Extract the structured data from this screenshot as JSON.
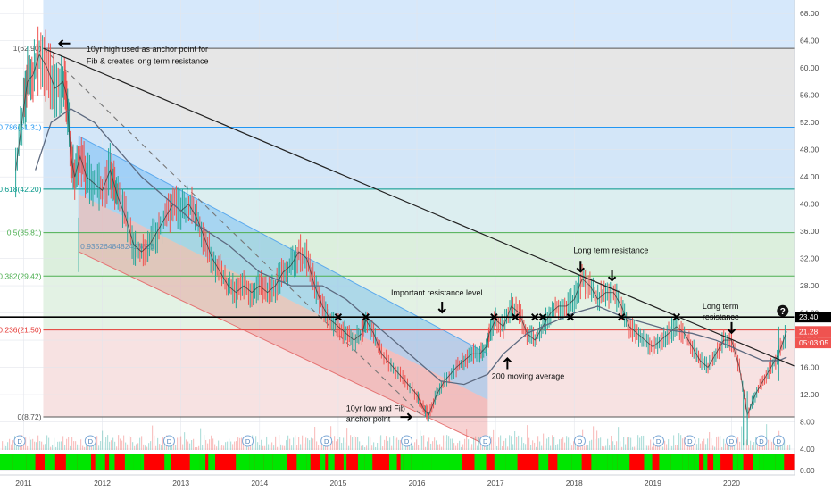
{
  "chart_data": {
    "type": "line",
    "series": [
      {
        "values": [
          [
            2010.9,
            45
          ],
          [
            2011.0,
            54
          ],
          [
            2011.05,
            58
          ],
          [
            2011.12,
            59
          ],
          [
            2011.2,
            62
          ],
          [
            2011.3,
            60
          ],
          [
            2011.4,
            57
          ],
          [
            2011.5,
            58
          ],
          [
            2011.55,
            56
          ],
          [
            2011.6,
            47
          ],
          [
            2011.65,
            44
          ],
          [
            2011.72,
            47
          ],
          [
            2011.8,
            44
          ],
          [
            2011.9,
            43
          ],
          [
            2012.0,
            42
          ],
          [
            2012.1,
            45
          ],
          [
            2012.15,
            43
          ],
          [
            2012.2,
            41
          ],
          [
            2012.3,
            38
          ],
          [
            2012.4,
            34
          ],
          [
            2012.5,
            33
          ],
          [
            2012.6,
            34
          ],
          [
            2012.7,
            36
          ],
          [
            2012.8,
            38
          ],
          [
            2012.9,
            40
          ],
          [
            2013.0,
            39
          ],
          [
            2013.1,
            40
          ],
          [
            2013.2,
            38
          ],
          [
            2013.3,
            35
          ],
          [
            2013.4,
            32
          ],
          [
            2013.5,
            30
          ],
          [
            2013.6,
            28
          ],
          [
            2013.7,
            27
          ],
          [
            2013.8,
            28
          ],
          [
            2013.9,
            27
          ],
          [
            2014.0,
            28
          ],
          [
            2014.1,
            27
          ],
          [
            2014.2,
            28
          ],
          [
            2014.3,
            30
          ],
          [
            2014.4,
            31
          ],
          [
            2014.5,
            33
          ],
          [
            2014.6,
            32
          ],
          [
            2014.7,
            28
          ],
          [
            2014.8,
            25
          ],
          [
            2014.9,
            23
          ],
          [
            2015.0,
            22
          ],
          [
            2015.1,
            21
          ],
          [
            2015.2,
            20
          ],
          [
            2015.3,
            21
          ],
          [
            2015.35,
            23
          ],
          [
            2015.45,
            21
          ],
          [
            2015.55,
            18
          ],
          [
            2015.7,
            16
          ],
          [
            2015.85,
            14
          ],
          [
            2016.0,
            12
          ],
          [
            2016.08,
            10
          ],
          [
            2016.15,
            9
          ],
          [
            2016.25,
            12
          ],
          [
            2016.35,
            14
          ],
          [
            2016.5,
            16
          ],
          [
            2016.6,
            17
          ],
          [
            2016.7,
            18
          ],
          [
            2016.8,
            18
          ],
          [
            2016.88,
            19
          ],
          [
            2016.92,
            21
          ],
          [
            2017.0,
            23
          ],
          [
            2017.1,
            22
          ],
          [
            2017.2,
            25
          ],
          [
            2017.3,
            24
          ],
          [
            2017.4,
            21
          ],
          [
            2017.5,
            20
          ],
          [
            2017.6,
            22
          ],
          [
            2017.7,
            24
          ],
          [
            2017.8,
            25
          ],
          [
            2017.9,
            25
          ],
          [
            2018.0,
            26
          ],
          [
            2018.1,
            29
          ],
          [
            2018.2,
            28
          ],
          [
            2018.3,
            26
          ],
          [
            2018.4,
            27
          ],
          [
            2018.5,
            27
          ],
          [
            2018.6,
            25
          ],
          [
            2018.7,
            22
          ],
          [
            2018.8,
            21
          ],
          [
            2018.9,
            20
          ],
          [
            2019.0,
            19
          ],
          [
            2019.1,
            20
          ],
          [
            2019.2,
            21
          ],
          [
            2019.3,
            22
          ],
          [
            2019.4,
            21
          ],
          [
            2019.5,
            19
          ],
          [
            2019.6,
            17
          ],
          [
            2019.7,
            16
          ],
          [
            2019.8,
            18
          ],
          [
            2019.9,
            20
          ],
          [
            2020.0,
            20
          ],
          [
            2020.1,
            16
          ],
          [
            2020.2,
            9
          ],
          [
            2020.3,
            12
          ],
          [
            2020.4,
            14
          ],
          [
            2020.5,
            16
          ],
          [
            2020.6,
            18
          ],
          [
            2020.7,
            21.28
          ]
        ]
      },
      {
        "values": [
          [
            2011.15,
            45
          ],
          [
            2011.35,
            52
          ],
          [
            2011.6,
            54
          ],
          [
            2011.9,
            52
          ],
          [
            2012.2,
            48
          ],
          [
            2012.5,
            44
          ],
          [
            2012.9,
            40
          ],
          [
            2013.2,
            37
          ],
          [
            2013.6,
            34
          ],
          [
            2014.0,
            30
          ],
          [
            2014.4,
            28
          ],
          [
            2014.8,
            28
          ],
          [
            2015.1,
            26
          ],
          [
            2015.4,
            23
          ],
          [
            2015.7,
            20
          ],
          [
            2016.0,
            17
          ],
          [
            2016.3,
            14
          ],
          [
            2016.6,
            13.5
          ],
          [
            2016.9,
            15
          ],
          [
            2017.1,
            18
          ],
          [
            2017.4,
            21
          ],
          [
            2017.7,
            22.5
          ],
          [
            2018.0,
            24
          ],
          [
            2018.3,
            25
          ],
          [
            2018.6,
            23.5
          ],
          [
            2018.9,
            22.5
          ],
          [
            2019.2,
            21.5
          ],
          [
            2019.5,
            21
          ],
          [
            2019.8,
            20
          ],
          [
            2020.1,
            18.5
          ],
          [
            2020.4,
            17
          ],
          [
            2020.6,
            17
          ],
          [
            2020.7,
            17.5
          ]
        ]
      }
    ],
    "x_ticks": [
      "2011",
      "2012",
      "2013",
      "2014",
      "2015",
      "2016",
      "2017",
      "2018",
      "2019",
      "2020"
    ],
    "y_ticks": [
      "68.00",
      "64.00",
      "60.00",
      "56.00",
      "52.00",
      "48.00",
      "44.00",
      "40.00",
      "36.00",
      "32.00",
      "28.00",
      "24.00",
      "20.00",
      "16.00",
      "12.00",
      "8.00",
      "4.00",
      "0.00"
    ],
    "indicator_tick": "0.00",
    "xlim": [
      2010.7,
      2020.8
    ],
    "ylim": [
      4,
      70
    ],
    "price_labels": [
      {
        "text": "23.40",
        "value": 23.4,
        "color": "#000000"
      },
      {
        "text": "21.28",
        "value": 21.28,
        "color": "#ef5350"
      },
      {
        "text": "05:03:05",
        "value": 19.6,
        "color": "#ef5350"
      }
    ],
    "fib_levels": [
      {
        "label": "1(62.90)",
        "value": 62.9,
        "color": "#555555",
        "zone": "#e6e6e6"
      },
      {
        "label": "0.786(51.31)",
        "value": 51.31,
        "color": "#2196f3",
        "zone": "#d3e6f8"
      },
      {
        "label": "0.618(42.20)",
        "value": 42.2,
        "color": "#009688",
        "zone": "#dceef0"
      },
      {
        "label": "0.5(35.81)",
        "value": 35.81,
        "color": "#4caf50",
        "zone": "#dcefdd"
      },
      {
        "label": "0.382(29.42)",
        "value": 29.42,
        "color": "#4caf50",
        "zone": "#e3f2e4"
      },
      {
        "label": "0.236(21.50)",
        "value": 21.5,
        "color": "#e53935",
        "zone": "#f7e2e2"
      },
      {
        "label": "0(8.72)",
        "value": 8.72,
        "color": "#555555",
        "zone": "#fad9d9"
      }
    ],
    "fib_top_zone_color": "#d6e8fb",
    "channel_label": "0.9352648482453826",
    "resistance_line": {
      "value": 23.4
    },
    "trend_line": {
      "from": [
        2011.25,
        62.9
      ],
      "to": [
        2020.8,
        16.2
      ]
    },
    "channel": {
      "upper": [
        [
          2011.7,
          50
        ],
        [
          2016.9,
          18
        ]
      ],
      "lower": [
        [
          2011.7,
          33
        ],
        [
          2016.9,
          4.5
        ]
      ],
      "mid": [
        [
          2011.7,
          41.5
        ],
        [
          2016.9,
          11.25
        ]
      ],
      "dashed": [
        [
          2011.25,
          62.9
        ],
        [
          2016.08,
          8.72
        ]
      ]
    },
    "annotations": [
      {
        "text": "10yr high used as anchor point for",
        "x": 2011.8,
        "y": 62.4
      },
      {
        "text": "Fib & creates long term resistance",
        "x": 2011.8,
        "y": 60.6
      },
      {
        "text": "Important resistance level",
        "x": 2015.67,
        "y": 26.6
      },
      {
        "text": "Long term resistance",
        "x": 2017.99,
        "y": 32.8
      },
      {
        "text": "Long term",
        "x": 2019.63,
        "y": 24.6
      },
      {
        "text": "resistance",
        "x": 2019.63,
        "y": 23.0
      },
      {
        "text": "200 moving average",
        "x": 2016.95,
        "y": 14.3
      },
      {
        "text": "10yr low and Fib",
        "x": 2015.1,
        "y": 9.6
      },
      {
        "text": "anchor point",
        "x": 2015.1,
        "y": 8.0
      }
    ],
    "x_marks": [
      [
        2015.0,
        23.4
      ],
      [
        2015.35,
        23.4
      ],
      [
        2016.98,
        23.4
      ],
      [
        2017.25,
        23.4
      ],
      [
        2017.5,
        23.4
      ],
      [
        2017.6,
        23.4
      ],
      [
        2017.95,
        23.4
      ],
      [
        2018.6,
        23.4
      ],
      [
        2019.3,
        23.4
      ]
    ],
    "arrows": [
      {
        "dir": "left",
        "x": 2011.5,
        "y": 63.6
      },
      {
        "dir": "down",
        "x": 2016.32,
        "y": 24.6
      },
      {
        "dir": "down",
        "x": 2018.08,
        "y": 30.6
      },
      {
        "dir": "down",
        "x": 2018.48,
        "y": 29.3
      },
      {
        "dir": "down",
        "x": 2020.0,
        "y": 21.6
      },
      {
        "dir": "up",
        "x": 2017.15,
        "y": 16.8
      },
      {
        "dir": "right",
        "x": 2015.88,
        "y": 8.7
      }
    ],
    "question_mark": {
      "text": "?",
      "x": 2020.65,
      "y": 24.3
    },
    "dividend_markers": {
      "text": "D",
      "x": [
        2010.95,
        2011.85,
        2012.85,
        2013.85,
        2014.85,
        2015.87,
        2016.87,
        2018.07,
        2019.07,
        2019.47,
        2020.0,
        2020.38,
        2020.6
      ]
    },
    "grid": true,
    "colors": {
      "up": "#26a69a",
      "down": "#ef5350",
      "price_line": "#333333",
      "ma_line": "#5d6a80",
      "channel_upper_fill": "#2196f3",
      "channel_lower_fill": "#e57373",
      "indicator_up": "#00e600",
      "indicator_down": "#ff0000"
    }
  }
}
